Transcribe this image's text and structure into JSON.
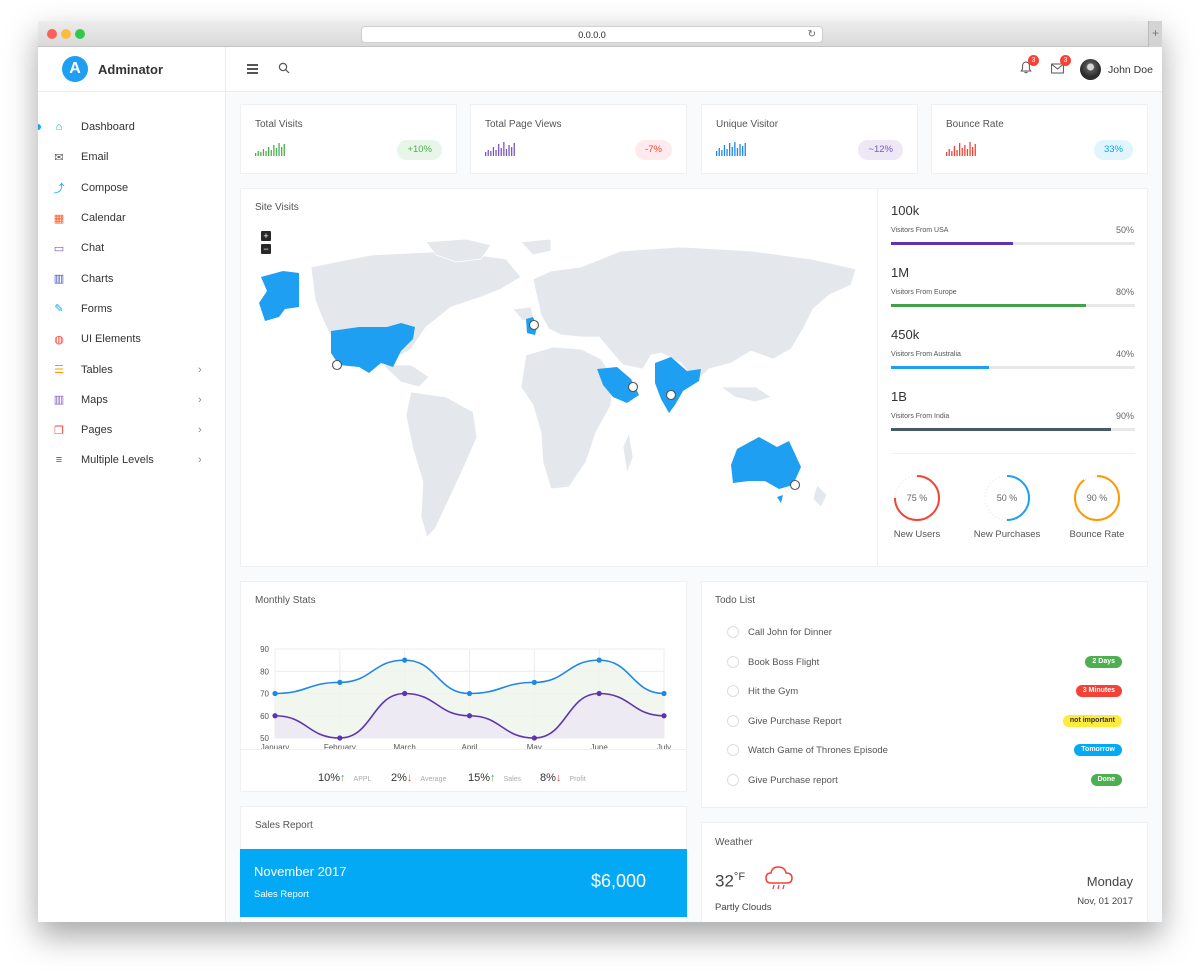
{
  "browser": {
    "url": "0.0.0.0"
  },
  "brand": {
    "name": "Adminator",
    "logo_letter": "A"
  },
  "sidebar": {
    "items": [
      {
        "label": "Dashboard",
        "icon": "home-icon",
        "color": "#03a9f4",
        "has_submenu": false
      },
      {
        "label": "Email",
        "icon": "email-icon",
        "color": "#555555",
        "has_submenu": false
      },
      {
        "label": "Compose",
        "icon": "share-icon",
        "color": "#03a9f4",
        "has_submenu": false
      },
      {
        "label": "Calendar",
        "icon": "calendar-icon",
        "color": "#ff5722",
        "has_submenu": false
      },
      {
        "label": "Chat",
        "icon": "chat-icon",
        "color": "#7e57c2",
        "has_submenu": false
      },
      {
        "label": "Charts",
        "icon": "bar-chart-icon",
        "color": "#3f51b5",
        "has_submenu": false
      },
      {
        "label": "Forms",
        "icon": "pencil-icon",
        "color": "#03a9f4",
        "has_submenu": false
      },
      {
        "label": "UI Elements",
        "icon": "palette-icon",
        "color": "#f44336",
        "has_submenu": false
      },
      {
        "label": "Tables",
        "icon": "table-icon",
        "color": "#ff9800",
        "has_submenu": true
      },
      {
        "label": "Maps",
        "icon": "map-icon",
        "color": "#7e57c2",
        "has_submenu": true
      },
      {
        "label": "Pages",
        "icon": "pages-icon",
        "color": "#f44336",
        "has_submenu": true
      },
      {
        "label": "Multiple Levels",
        "icon": "layers-icon",
        "color": "#3f51b5",
        "has_submenu": true
      }
    ]
  },
  "topbar": {
    "user_name": "John Doe",
    "notification_count": "3",
    "mail_count": "3"
  },
  "stats": [
    {
      "title": "Total Visits",
      "badge": "+10%",
      "color": "#4caf50",
      "badge_bg": "#e8f5e9"
    },
    {
      "title": "Total Page Views",
      "badge": "-7%",
      "color": "#f44336",
      "badge_bg": "#ffebee"
    },
    {
      "title": "Unique Visitor",
      "badge": "~12%",
      "color": "#7e57c2",
      "badge_bg": "#ede7f6"
    },
    {
      "title": "Bounce Rate",
      "badge": "33%",
      "color": "#03a9f4",
      "badge_bg": "#e1f5fe"
    }
  ],
  "stat_spark_colors": [
    "#4caf50",
    "#7e57c2",
    "#1e88e5",
    "#f44336"
  ],
  "site_visits": {
    "title": "Site Visits",
    "zoom_in": "+",
    "zoom_out": "−",
    "regions": [
      {
        "value": "100k",
        "label": "Visitors From USA",
        "percent": "50%",
        "fill": 0.5,
        "color": "#5e35b1"
      },
      {
        "value": "1M",
        "label": "Visitors From Europe",
        "percent": "80%",
        "fill": 0.8,
        "color": "#43a047"
      },
      {
        "value": "450k",
        "label": "Visitors From Australia",
        "percent": "40%",
        "fill": 0.4,
        "color": "#1e9ff2"
      },
      {
        "value": "1B",
        "label": "Visitors From India",
        "percent": "90%",
        "fill": 0.9,
        "color": "#455a64"
      }
    ],
    "rings": [
      {
        "value": "75 %",
        "label": "New Users",
        "fill": 0.75,
        "color": "#f44336"
      },
      {
        "value": "50 %",
        "label": "New Purchases",
        "fill": 0.5,
        "color": "#1e9ff2"
      },
      {
        "value": "90 %",
        "label": "Bounce Rate",
        "fill": 0.9,
        "color": "#ff9800"
      }
    ]
  },
  "monthly_stats": {
    "title": "Monthly Stats",
    "summary": [
      {
        "value": "10%",
        "arrow": "↑",
        "arrow_color": "#4caf50",
        "label": "APPL"
      },
      {
        "value": "2%",
        "arrow": "↓",
        "arrow_color": "#f44336",
        "label": "Average"
      },
      {
        "value": "15%",
        "arrow": "↑",
        "arrow_color": "#4caf50",
        "label": "Sales"
      },
      {
        "value": "8%",
        "arrow": "↓",
        "arrow_color": "#f44336",
        "label": "Profit"
      }
    ]
  },
  "chart_data": {
    "type": "line",
    "title": "",
    "categories": [
      "January",
      "February",
      "March",
      "April",
      "May",
      "June",
      "July"
    ],
    "ylim": [
      50,
      90
    ],
    "yticks": [
      "90",
      "80",
      "70",
      "60",
      "50"
    ],
    "series": [
      {
        "name": "",
        "values": [
          70,
          75,
          85,
          70,
          75,
          85,
          70
        ],
        "color": "#1e88e5",
        "fill": "#eef6ec"
      },
      {
        "name": "",
        "values": [
          60,
          50,
          70,
          60,
          50,
          70,
          60
        ],
        "color": "#5e35b1",
        "fill": "#ede8f4"
      }
    ]
  },
  "todo": {
    "title": "Todo List",
    "items": [
      {
        "text": "Call John for Dinner",
        "tag": "",
        "tag_color": ""
      },
      {
        "text": "Book Boss Flight",
        "tag": "2 Days",
        "tag_color": "#4caf50"
      },
      {
        "text": "Hit the Gym",
        "tag": "3 Minutes",
        "tag_color": "#f44336"
      },
      {
        "text": "Give Purchase Report",
        "tag": "not important",
        "tag_color": "#ffeb3b"
      },
      {
        "text": "Watch Game of Thrones Episode",
        "tag": "Tomorrow",
        "tag_color": "#03a9f4"
      },
      {
        "text": "Give Purchase report",
        "tag": "Done",
        "tag_color": "#4caf50"
      }
    ]
  },
  "sales_report": {
    "title": "Sales Report",
    "month": "November 2017",
    "subtitle": "Sales Report",
    "amount": "$6,000"
  },
  "weather": {
    "title": "Weather",
    "temp": "32",
    "unit": "°F",
    "condition": "Partly Clouds",
    "day": "Monday",
    "date": "Nov, 01 2017"
  }
}
